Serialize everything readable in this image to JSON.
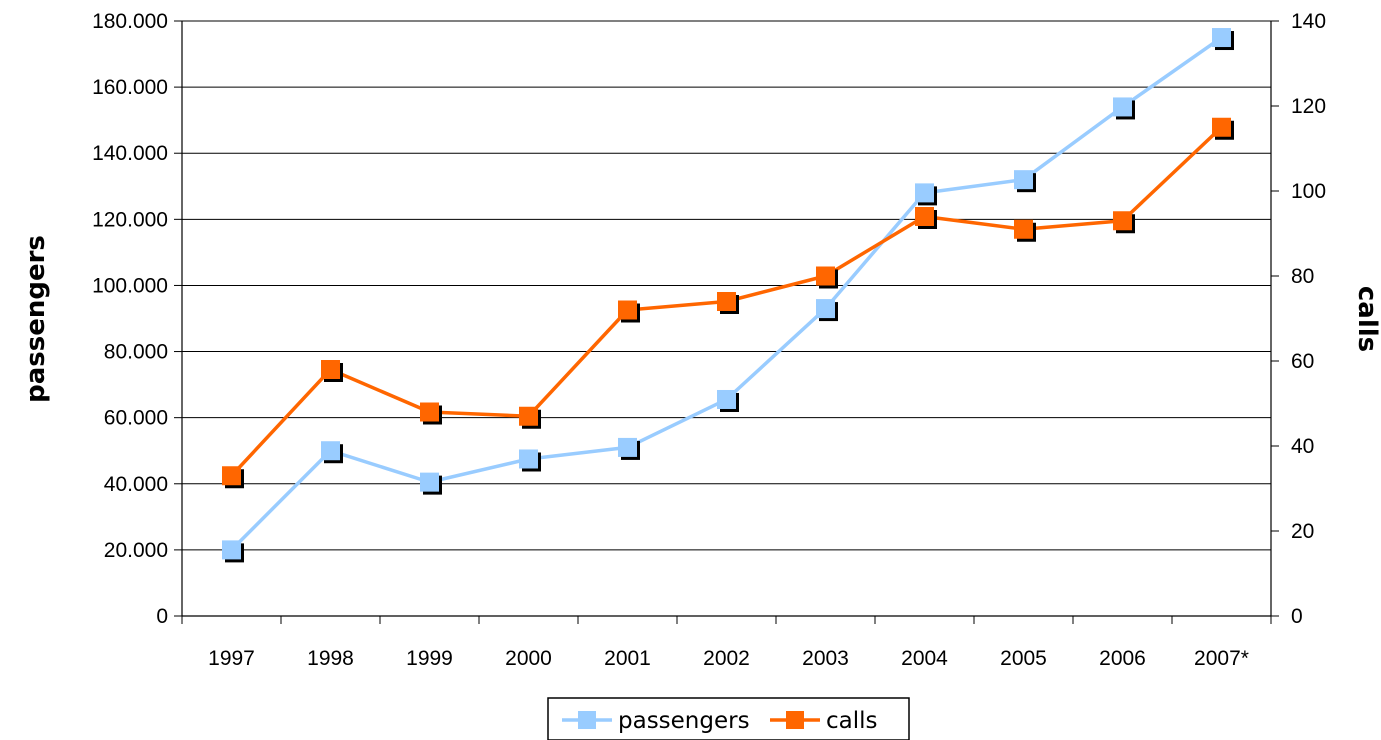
{
  "chart_data": {
    "type": "line",
    "categories": [
      "1997",
      "1998",
      "1999",
      "2000",
      "2001",
      "2002",
      "2003",
      "2004",
      "2005",
      "2006",
      "2007*"
    ],
    "y_left": {
      "label": "passengers",
      "range": [
        0,
        180000
      ],
      "ticks": [
        0,
        20000,
        40000,
        60000,
        80000,
        100000,
        120000,
        140000,
        160000,
        180000
      ],
      "tick_labels": [
        "0",
        "20.000",
        "40.000",
        "60.000",
        "80.000",
        "100.000",
        "120.000",
        "140.000",
        "160.000",
        "180.000"
      ]
    },
    "y_right": {
      "label": "calls",
      "range": [
        0,
        140
      ],
      "ticks": [
        0,
        20,
        40,
        60,
        80,
        100,
        120,
        140
      ],
      "tick_labels": [
        "0",
        "20",
        "40",
        "60",
        "80",
        "100",
        "120",
        "140"
      ]
    },
    "series": [
      {
        "name": "passengers",
        "axis": "left",
        "color": "#99ccff",
        "values": [
          20000,
          50000,
          40500,
          47500,
          51000,
          65500,
          93000,
          128000,
          132000,
          154000,
          175000
        ]
      },
      {
        "name": "calls",
        "axis": "right",
        "color": "#ff6600",
        "values": [
          33,
          58,
          48,
          47,
          72,
          74,
          80,
          94,
          91,
          93,
          115
        ]
      }
    ],
    "grid": "horizontal major lines",
    "legend": "bottom-center",
    "title": ""
  }
}
